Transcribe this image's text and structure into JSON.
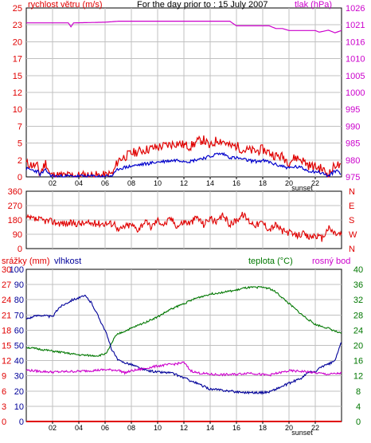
{
  "colors": {
    "wind": "#e00000",
    "wind_avg": "#0000cc",
    "pressure": "#cc00cc",
    "direction": "#e00000",
    "rain": "#e00000",
    "humidity": "#000099",
    "temperature": "#007700",
    "dew": "#cc00cc",
    "frame": "#000000",
    "grid": "#c0c0c0"
  },
  "chart_data": [
    {
      "type": "line",
      "title": "For the day prior to : 15 July 2007",
      "ylabel": "rychlost větru (m/s)",
      "y2label": "tlak (hPa)",
      "ylim": [
        0,
        25
      ],
      "y2lim": [
        975,
        1026
      ],
      "yticks": [
        "0",
        "2",
        "5",
        "7",
        "10",
        "12",
        "15",
        "17",
        "20",
        "23",
        "25"
      ],
      "y2ticks": [
        "975",
        "980",
        "985",
        "990",
        "995",
        "1000",
        "1005",
        "1010",
        "1016",
        "1021",
        "1026"
      ],
      "xticks": [
        "02",
        "04",
        "06",
        "08",
        "10",
        "12",
        "14",
        "16",
        "18",
        "20",
        "22"
      ],
      "xtick_hours": [
        2,
        4,
        6,
        8,
        10,
        12,
        14,
        16,
        18,
        20,
        22
      ],
      "sunset_label": "sunset",
      "sunset_hour": 21,
      "series": [
        {
          "key": "gust",
          "x": [
            0,
            0.9,
            1,
            1.5,
            1.8,
            2.1,
            3,
            4,
            5,
            6,
            6.6,
            7,
            7.5,
            8,
            9,
            10,
            11,
            11.5,
            12,
            12.5,
            13,
            13.5,
            14,
            14.5,
            15,
            15.5,
            16,
            16.5,
            17,
            17.5,
            18,
            18.5,
            19,
            19.5,
            20,
            20.5,
            21,
            21.5,
            22,
            22.5,
            23,
            23.6,
            24
          ],
          "y": [
            2,
            1.5,
            0.3,
            2.2,
            0.3,
            0.2,
            0.2,
            0.2,
            0.2,
            0.2,
            0.5,
            2.5,
            3,
            3.5,
            4,
            4.4,
            4.8,
            5,
            4.7,
            4.5,
            5.2,
            5.5,
            4.4,
            5.5,
            5.3,
            4.5,
            4.6,
            4,
            3.9,
            3.8,
            4.1,
            3.6,
            3.1,
            3,
            2.2,
            2.9,
            2.5,
            1.7,
            1.5,
            1.2,
            0.3,
            2,
            1.2
          ]
        },
        {
          "key": "average",
          "x": [
            0,
            0.9,
            1,
            1.5,
            1.8,
            2.1,
            3,
            4,
            5,
            6,
            6.6,
            7,
            7.5,
            8,
            9,
            10,
            11,
            11.5,
            12,
            12.5,
            13,
            13.5,
            14,
            14.5,
            15,
            15.5,
            16,
            16.5,
            17,
            17.5,
            18,
            18.5,
            19,
            19.5,
            20,
            20.5,
            21,
            21.5,
            22,
            22.5,
            23,
            23.6,
            24
          ],
          "y": [
            1.2,
            0.8,
            0.3,
            1,
            0.3,
            0.1,
            0.1,
            0.1,
            0.1,
            0.1,
            0.2,
            1.2,
            1.4,
            1.6,
            1.9,
            2.2,
            2.4,
            2.5,
            2.4,
            2.3,
            2.6,
            2.8,
            3,
            3.4,
            3.4,
            2.9,
            2.8,
            2.6,
            2.4,
            2.3,
            2.4,
            2.2,
            1.8,
            1.6,
            1.3,
            1.5,
            1.3,
            0.9,
            0.8,
            0.6,
            0.1,
            1,
            0.5
          ]
        },
        {
          "key": "pressure",
          "axis": "y2",
          "x": [
            0,
            3.2,
            3.4,
            3.6,
            6,
            7,
            10,
            15.5,
            16,
            18.5,
            19,
            19.5,
            20,
            22,
            22.3,
            23,
            23.5,
            24
          ],
          "y": [
            1021.5,
            1021.5,
            1020.3,
            1021.5,
            1021.7,
            1022,
            1022,
            1022,
            1020.6,
            1020.6,
            1019.8,
            1019.8,
            1019.2,
            1019.2,
            1018.7,
            1019.3,
            1018.5,
            1019.2
          ]
        }
      ]
    },
    {
      "type": "line",
      "ylim": [
        0,
        360
      ],
      "yticks": [
        "0",
        "90",
        "180",
        "270",
        "360"
      ],
      "y2ticks": [
        "N",
        "W",
        "S",
        "E",
        "N"
      ],
      "xticks": [
        "02",
        "04",
        "06",
        "08",
        "10",
        "12",
        "14",
        "16",
        "18",
        "20",
        "22"
      ],
      "series": [
        {
          "key": "direction",
          "x": [
            0,
            1,
            2,
            2.5,
            3,
            4,
            5,
            6,
            6.8,
            7,
            7.5,
            8,
            8.5,
            9,
            9.5,
            10,
            10.5,
            11,
            11.5,
            12,
            12.5,
            13,
            13.5,
            14,
            14.5,
            15,
            15.5,
            16,
            16.5,
            17,
            17.5,
            18,
            18.5,
            19,
            19.5,
            20,
            20.5,
            21,
            21.5,
            22,
            22.5,
            23,
            23.5,
            24
          ],
          "y": [
            190,
            180,
            170,
            160,
            158,
            158,
            158,
            158,
            158,
            110,
            140,
            150,
            120,
            170,
            135,
            180,
            150,
            190,
            140,
            170,
            160,
            200,
            150,
            195,
            160,
            210,
            150,
            180,
            215,
            170,
            150,
            165,
            120,
            150,
            110,
            100,
            80,
            95,
            70,
            85,
            60,
            130,
            95,
            90
          ]
        }
      ]
    },
    {
      "type": "line",
      "legend": [
        "srážky (mm)",
        "vlhkost",
        "teplota (°C)",
        "rosný bod"
      ],
      "ylim": [
        0,
        40
      ],
      "rain_ticks": [
        "0",
        "3",
        "6",
        "9",
        "12",
        "15",
        "18",
        "21",
        "24",
        "27",
        "30"
      ],
      "humidity_ticks": [
        "0",
        "10",
        "20",
        "30",
        "40",
        "50",
        "60",
        "70",
        "80",
        "90",
        "100"
      ],
      "temp_ticks": [
        "0",
        "4",
        "8",
        "12",
        "16",
        "20",
        "24",
        "28",
        "32",
        "36",
        "40"
      ],
      "xticks": [
        "02",
        "04",
        "06",
        "08",
        "10",
        "12",
        "14",
        "16",
        "18",
        "20",
        "22"
      ],
      "sunset_label": "sunset",
      "sunset_hour": 21,
      "series": [
        {
          "key": "rain",
          "x": [
            0,
            24
          ],
          "y": [
            0,
            0
          ]
        },
        {
          "key": "temperature",
          "x": [
            0,
            1,
            2,
            3,
            4,
            5,
            5.5,
            6,
            6.3,
            6.7,
            7,
            8,
            9,
            10,
            11,
            12,
            13,
            14,
            15,
            16,
            16.5,
            17,
            18,
            18.5,
            19,
            20,
            21,
            22,
            23,
            24
          ],
          "y": [
            19.5,
            19,
            18.5,
            18,
            17.5,
            17.3,
            17.3,
            17.8,
            19,
            22,
            23,
            24.5,
            26,
            27.5,
            29.5,
            31,
            32.5,
            33.5,
            34,
            34.5,
            35,
            35.2,
            35.3,
            35,
            34,
            31,
            28,
            25.5,
            24.5,
            23
          ]
        },
        {
          "key": "humidity",
          "x": [
            0,
            1,
            2,
            2.5,
            3,
            3.5,
            4,
            4.5,
            5,
            5.5,
            6,
            6.5,
            7,
            8,
            9,
            10,
            11,
            12,
            13,
            14,
            15,
            16,
            17,
            18,
            18.5,
            19,
            20,
            21,
            21.5,
            22,
            22.5,
            23,
            23.5,
            24
          ],
          "y": [
            27,
            28,
            27.5,
            30,
            31,
            32,
            32.5,
            33,
            31,
            27.5,
            24,
            19,
            16,
            15,
            13.5,
            13,
            12.8,
            11.5,
            10,
            8.5,
            8.2,
            7.8,
            7.6,
            7.6,
            7.8,
            8.5,
            10,
            11.5,
            13,
            13,
            14.5,
            15,
            16,
            21
          ]
        },
        {
          "key": "dew",
          "x": [
            0,
            1,
            2,
            3,
            4,
            5,
            6,
            7,
            7.5,
            8,
            9,
            10,
            11,
            11.5,
            12,
            12.5,
            13,
            14,
            15,
            16,
            17,
            18,
            18.5,
            19,
            20,
            21,
            22,
            23,
            24
          ],
          "y": [
            13.5,
            13.2,
            13,
            13.1,
            13.2,
            13.4,
            13.6,
            13.5,
            12.8,
            13.3,
            13.9,
            14.6,
            15,
            15.2,
            15.5,
            13.4,
            12.8,
            12.4,
            12.3,
            12.4,
            12.8,
            12.3,
            12.2,
            12.6,
            13.3,
            13.2,
            12.8,
            12.4,
            12.7
          ]
        }
      ]
    }
  ]
}
